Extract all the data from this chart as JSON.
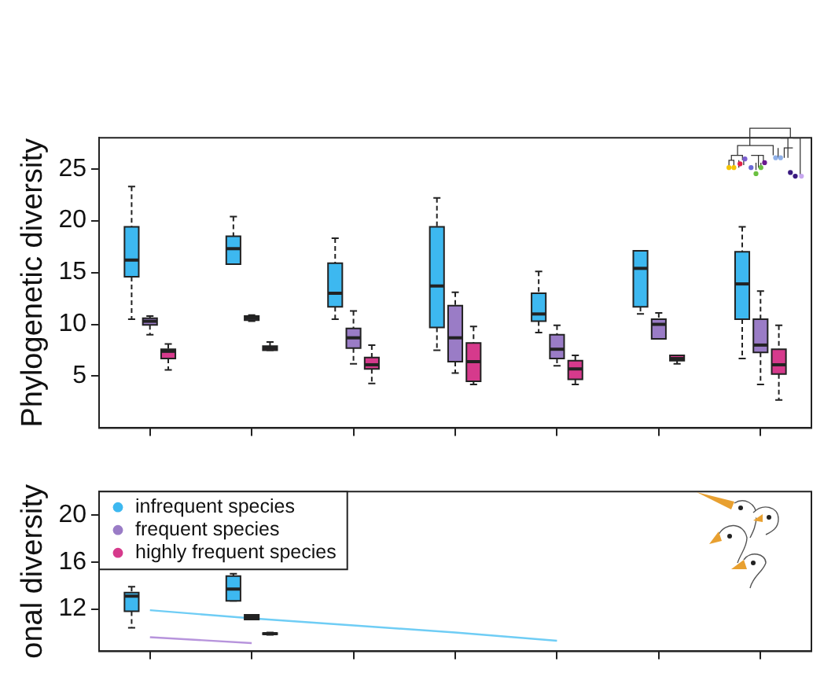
{
  "chart_data": [
    {
      "type": "box",
      "ylabel": "Phylogenetic diversity",
      "categories": [
        null,
        null,
        null,
        null,
        null,
        null,
        null
      ],
      "ylim": [
        0,
        28
      ],
      "yticks": [
        5,
        10,
        15,
        20,
        25
      ],
      "grid": false,
      "series": [
        {
          "color": "#3db8f0",
          "boxes": [
            {
              "low": 10.5,
              "q1": 14.6,
              "median": 16.2,
              "q3": 19.4,
              "high": 23.3
            },
            {
              "low": 15.8,
              "q1": 15.8,
              "median": 17.3,
              "q3": 18.5,
              "high": 20.4
            },
            {
              "low": 10.5,
              "q1": 11.7,
              "median": 13.0,
              "q3": 15.9,
              "high": 18.3
            },
            {
              "low": 7.5,
              "q1": 9.7,
              "median": 13.7,
              "q3": 19.4,
              "high": 22.2
            },
            {
              "low": 9.2,
              "q1": 10.3,
              "median": 11.0,
              "q3": 13.0,
              "high": 15.1
            },
            {
              "low": 11.0,
              "q1": 11.7,
              "median": 15.4,
              "q3": 17.1,
              "high": 17.1
            },
            {
              "low": 6.7,
              "q1": 10.5,
              "median": 13.9,
              "q3": 17.0,
              "high": 19.4
            }
          ]
        },
        {
          "color": "#9a7cc6",
          "boxes": [
            {
              "low": 9.0,
              "q1": 9.95,
              "median": 10.3,
              "q3": 10.6,
              "high": 10.8
            },
            {
              "low": 10.3,
              "q1": 10.4,
              "median": 10.6,
              "q3": 10.8,
              "high": 10.9
            },
            {
              "low": 6.2,
              "q1": 7.7,
              "median": 8.7,
              "q3": 9.6,
              "high": 11.3
            },
            {
              "low": 5.3,
              "q1": 6.4,
              "median": 8.7,
              "q3": 11.8,
              "high": 13.1
            },
            {
              "low": 6.0,
              "q1": 6.7,
              "median": 7.6,
              "q3": 9.0,
              "high": 9.9
            },
            {
              "low": 8.6,
              "q1": 8.6,
              "median": 10.0,
              "q3": 10.5,
              "high": 11.1
            },
            {
              "low": 4.2,
              "q1": 7.3,
              "median": 8.0,
              "q3": 10.5,
              "high": 13.2
            }
          ]
        },
        {
          "color": "#d63a8c",
          "boxes": [
            {
              "low": 5.6,
              "q1": 6.7,
              "median": 7.4,
              "q3": 7.6,
              "high": 8.1
            },
            {
              "low": 7.5,
              "q1": 7.5,
              "median": 7.7,
              "q3": 7.9,
              "high": 8.3
            },
            {
              "low": 4.3,
              "q1": 5.7,
              "median": 6.1,
              "q3": 6.8,
              "high": 8.0
            },
            {
              "low": 4.2,
              "q1": 4.5,
              "median": 6.4,
              "q3": 8.2,
              "high": 9.8
            },
            {
              "low": 4.2,
              "q1": 4.7,
              "median": 5.7,
              "q3": 6.5,
              "high": 7.0
            },
            {
              "low": 6.2,
              "q1": 6.5,
              "median": 6.7,
              "q3": 7.0,
              "high": 7.0
            },
            {
              "low": 2.7,
              "q1": 5.2,
              "median": 6.1,
              "q3": 7.6,
              "high": 9.9
            }
          ]
        }
      ]
    },
    {
      "type": "box",
      "ylabel": "onal diversity",
      "categories": [
        null,
        null,
        null,
        null,
        null,
        null,
        null
      ],
      "ylim": [
        8.4,
        22
      ],
      "yticks": [
        12,
        16,
        20
      ],
      "grid": false,
      "legend": "top left",
      "series": [
        {
          "name": "infrequent species",
          "color": "#3db8f0",
          "boxes": [
            {
              "low": 10.4,
              "q1": 11.8,
              "median": 13.1,
              "q3": 13.4,
              "high": 13.9
            },
            {
              "low": 12.7,
              "q1": 12.7,
              "median": 13.7,
              "q3": 14.8,
              "high": 15.0
            },
            null,
            null,
            null,
            null,
            null
          ]
        },
        {
          "name": "frequent species",
          "color": "#9a7cc6",
          "boxes": [
            null,
            {
              "low": 11.1,
              "q1": 11.1,
              "median": 11.3,
              "q3": 11.5,
              "high": 11.5
            },
            null,
            null,
            null,
            null,
            null
          ]
        },
        {
          "name": "highly frequent species",
          "color": "#d63a8c",
          "boxes": [
            null,
            {
              "low": 9.8,
              "q1": 9.85,
              "median": 9.9,
              "q3": 9.95,
              "high": 10.0
            },
            null,
            null,
            null,
            null,
            null
          ]
        },
        {
          "type": "line",
          "color": "#6fcdf5",
          "values": [
            11.9,
            11.2,
            10.6,
            10.0,
            9.3,
            null,
            null
          ]
        },
        {
          "type": "line",
          "color": "#b794dc",
          "values": [
            9.6,
            9.1,
            null,
            null,
            null,
            null,
            null
          ]
        }
      ]
    }
  ]
}
